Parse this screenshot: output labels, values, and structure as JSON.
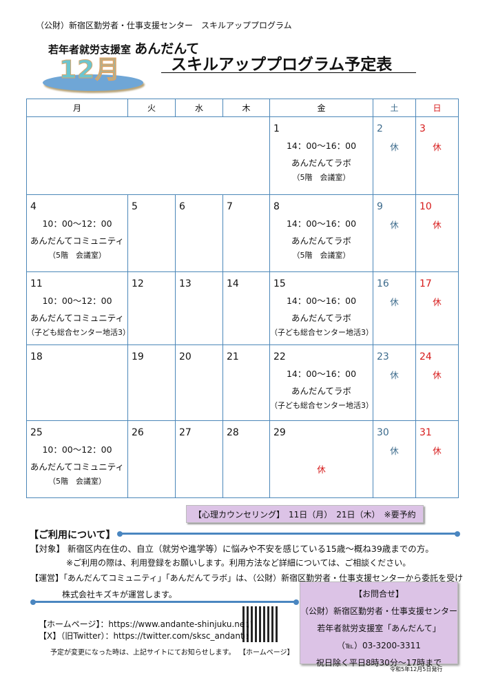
{
  "header": {
    "org": "（公財）新宿区勤労者・仕事支援センター　スキルアッププログラム",
    "office": "若年者就労支援室",
    "brand": "あんだんて",
    "month": "12月",
    "title": "スキルアッププログラム予定表"
  },
  "colors": {
    "border": "#4a86b8",
    "saturday": "#3d6b8c",
    "sunday": "#d61a1a",
    "box": "#dcc3e6"
  },
  "calendar": {
    "weekdays": [
      "月",
      "火",
      "水",
      "木",
      "金",
      "土",
      "日"
    ],
    "weeks": [
      [
        {
          "span": 4,
          "day": "",
          "lines": []
        },
        {
          "day": "1",
          "lines": [
            "14：00～16：00",
            "あんだんてラボ",
            "（5階　会議室）"
          ]
        },
        {
          "day": "2",
          "lines": [
            "休"
          ]
        },
        {
          "day": "3",
          "lines": [
            "休"
          ]
        }
      ],
      [
        {
          "day": "4",
          "lines": [
            "10：00～12：00",
            "あんだんてコミュニティ",
            "（5階　会議室）"
          ]
        },
        {
          "day": "5",
          "lines": []
        },
        {
          "day": "6",
          "lines": []
        },
        {
          "day": "7",
          "lines": []
        },
        {
          "day": "8",
          "lines": [
            "14：00～16：00",
            "あんだんてラボ",
            "（5階　会議室）"
          ]
        },
        {
          "day": "9",
          "lines": [
            "休"
          ]
        },
        {
          "day": "10",
          "lines": [
            "休"
          ]
        }
      ],
      [
        {
          "day": "11",
          "lines": [
            "10：00～12：00",
            "あんだんてコミュニティ",
            "（子ども総合センター地活3）"
          ]
        },
        {
          "day": "12",
          "lines": []
        },
        {
          "day": "13",
          "lines": []
        },
        {
          "day": "14",
          "lines": []
        },
        {
          "day": "15",
          "lines": [
            "14：00～16：00",
            "あんだんてラボ",
            "（子ども総合センター地活3）"
          ]
        },
        {
          "day": "16",
          "lines": [
            "休"
          ]
        },
        {
          "day": "17",
          "lines": [
            "休"
          ]
        }
      ],
      [
        {
          "day": "18",
          "lines": []
        },
        {
          "day": "19",
          "lines": []
        },
        {
          "day": "20",
          "lines": []
        },
        {
          "day": "21",
          "lines": []
        },
        {
          "day": "22",
          "lines": [
            "14：00～16：00",
            "あんだんてラボ",
            "（子ども総合センター地活3）"
          ]
        },
        {
          "day": "23",
          "lines": [
            "休"
          ]
        },
        {
          "day": "24",
          "lines": [
            "休"
          ]
        }
      ],
      [
        {
          "day": "25",
          "lines": [
            "10：00～12：00",
            "あんだんてコミュニティ",
            "（5階　会議室）"
          ]
        },
        {
          "day": "26",
          "lines": []
        },
        {
          "day": "27",
          "lines": []
        },
        {
          "day": "28",
          "lines": []
        },
        {
          "day": "29",
          "lines": [
            "",
            "休"
          ]
        },
        {
          "day": "30",
          "lines": [
            "休"
          ]
        },
        {
          "day": "31",
          "lines": [
            "休"
          ]
        }
      ]
    ]
  },
  "counseling": "【心理カウンセリング】　11日（月）　21日（木）　※要予約",
  "usage": {
    "heading": "【ご利用について】",
    "target": "【対象】 新宿区内在住の、自立（就労や進学等）に悩みや不安を感じている15歳～概ね39歳までの方。",
    "note": "※ご利用の際は、利用登録をお願いします。利用方法など詳細については、ご相談ください。",
    "operation1": "【運営】「あんだんてコミュニティ」「あんだんてラボ」は、（公財）新宿区勤労者・仕事支援センターから委託を受け",
    "operation2": "株式会社キズキが運営します。"
  },
  "links": {
    "homepage": "【ホームページ】：https://www.andante-shinjuku.net/",
    "x": "【X】（旧Twitter）：https://twitter.com/sksc_andante",
    "notice": "予定が変更になった時は、上記サイトにてお知らせします。",
    "qr_label": "【ホームページ】"
  },
  "contact": {
    "heading": "【お問合せ】",
    "org": "（公財）新宿区勤労者・仕事支援センター",
    "office": "若年者就労支援室「あんだんて」",
    "tel": "（℡）03-3200-3311",
    "hours": "祝日除く平日8時30分～17時まで"
  },
  "issued": "令和5年12月5日発行"
}
